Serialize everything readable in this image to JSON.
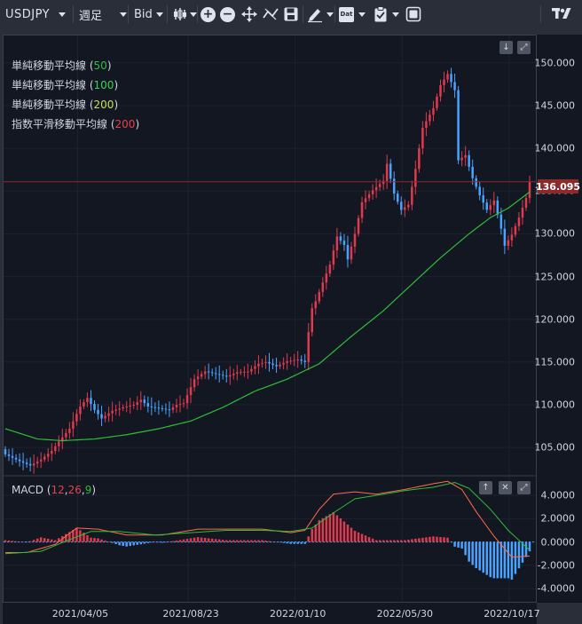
{
  "toolbar": {
    "symbol": "USDJPY",
    "interval": "週足",
    "price_type": "Bid",
    "icons": [
      "bar-style-icon",
      "zoom-in-icon",
      "zoom-out-icon",
      "crosshair-icon",
      "indicator-icon",
      "save-icon",
      "draw-pen-icon",
      "calendar-icon",
      "clipboard-icon",
      "layout-icon",
      "tradingview-logo-icon"
    ],
    "calendar_label": "Dat"
  },
  "legend": {
    "items": [
      {
        "name": "単純移動平均線",
        "param": "50",
        "color": "#2ebd3a"
      },
      {
        "name": "単純移動平均線",
        "param": "100",
        "color": "#39d353"
      },
      {
        "name": "単純移動平均線",
        "param": "200",
        "color": "#c8e05a"
      },
      {
        "name": "指数平滑移動平均線",
        "param": "200",
        "color": "#e04545"
      }
    ]
  },
  "macd": {
    "label": "MACD",
    "p1": "12",
    "p2": "26",
    "p3": "9",
    "p1_color": "#e04545",
    "p2_color": "#e04545",
    "p3_color": "#2ebd3a"
  },
  "last_price": "136.095",
  "colors": {
    "up": "#e03a4e",
    "down": "#4aa3ff",
    "ma": "#2ebd3a",
    "macd_line": "#ff6b4a",
    "signal_line": "#2ebd3a",
    "hist_pos": "#e03a4e",
    "hist_neg": "#4aa3ff"
  },
  "chart_data": {
    "type": "candlestick",
    "price_axis": {
      "ticks": [
        "150.000",
        "145.000",
        "140.000",
        "135.000",
        "130.000",
        "125.000",
        "120.000",
        "115.000",
        "110.000",
        "105.000"
      ],
      "range": [
        101.8,
        153.2
      ]
    },
    "macd_axis": {
      "ticks": [
        "4.0000",
        "2.0000",
        "0.0000",
        "-2.0000",
        "-4.0000"
      ],
      "range": [
        -5.2,
        5.6
      ]
    },
    "x_labels": [
      "2021/04/05",
      "2021/08/23",
      "2022/01/10",
      "2022/05/30",
      "2022/10/17"
    ],
    "close_anchors": [
      [
        0,
        104.2
      ],
      [
        4,
        103.4
      ],
      [
        7,
        102.9
      ],
      [
        10,
        103.6
      ],
      [
        13,
        104.6
      ],
      [
        15,
        105.7
      ],
      [
        18,
        107.2
      ],
      [
        21,
        109.8
      ],
      [
        23,
        110.8
      ],
      [
        25,
        109.4
      ],
      [
        27,
        108.4
      ],
      [
        30,
        109.3
      ],
      [
        33,
        109.7
      ],
      [
        36,
        110.0
      ],
      [
        38,
        110.6
      ],
      [
        40,
        109.8
      ],
      [
        43,
        109.6
      ],
      [
        46,
        109.4
      ],
      [
        48,
        110.0
      ],
      [
        50,
        110.2
      ],
      [
        53,
        113.0
      ],
      [
        56,
        113.9
      ],
      [
        59,
        113.6
      ],
      [
        62,
        113.3
      ],
      [
        65,
        113.8
      ],
      [
        68,
        113.9
      ],
      [
        71,
        114.8
      ],
      [
        73,
        115.0
      ],
      [
        76,
        114.5
      ],
      [
        79,
        115.1
      ],
      [
        82,
        115.3
      ],
      [
        84,
        115.0
      ],
      [
        85,
        118.5
      ],
      [
        86,
        121.3
      ],
      [
        87,
        122.1
      ],
      [
        89,
        124.3
      ],
      [
        91,
        126.4
      ],
      [
        93,
        129.7
      ],
      [
        95,
        128.7
      ],
      [
        96,
        127.0
      ],
      [
        98,
        130.0
      ],
      [
        100,
        133.7
      ],
      [
        103,
        135.1
      ],
      [
        106,
        136.2
      ],
      [
        107,
        138.2
      ],
      [
        109,
        134.7
      ],
      [
        111,
        132.8
      ],
      [
        113,
        133.4
      ],
      [
        115,
        137.6
      ],
      [
        117,
        142.4
      ],
      [
        120,
        144.7
      ],
      [
        122,
        147.4
      ],
      [
        124,
        148.7
      ],
      [
        126,
        146.8
      ],
      [
        127,
        138.6
      ],
      [
        129,
        139.2
      ],
      [
        131,
        136.5
      ],
      [
        133,
        134.5
      ],
      [
        135,
        132.8
      ],
      [
        137,
        133.9
      ],
      [
        139,
        130.6
      ],
      [
        140,
        128.6
      ],
      [
        142,
        129.9
      ],
      [
        144,
        131.9
      ],
      [
        146,
        134.2
      ],
      [
        147,
        136.1
      ]
    ],
    "ma_anchors": [
      [
        0,
        107.2
      ],
      [
        9,
        106.0
      ],
      [
        16,
        105.8
      ],
      [
        25,
        106.0
      ],
      [
        34,
        106.5
      ],
      [
        43,
        107.2
      ],
      [
        52,
        108.1
      ],
      [
        61,
        109.7
      ],
      [
        70,
        111.6
      ],
      [
        79,
        113.0
      ],
      [
        88,
        114.8
      ],
      [
        97,
        118.0
      ],
      [
        106,
        121.0
      ],
      [
        115,
        124.5
      ],
      [
        122,
        127.2
      ],
      [
        130,
        130.0
      ],
      [
        136,
        131.9
      ],
      [
        141,
        133.0
      ],
      [
        147,
        134.9
      ]
    ],
    "macd_anchors": [
      [
        0,
        -0.9
      ],
      [
        6,
        -0.9
      ],
      [
        14,
        -0.2
      ],
      [
        20,
        1.2
      ],
      [
        26,
        1.1
      ],
      [
        34,
        0.6
      ],
      [
        44,
        0.6
      ],
      [
        54,
        1.1
      ],
      [
        63,
        1.1
      ],
      [
        72,
        1.1
      ],
      [
        80,
        0.8
      ],
      [
        84,
        1.0
      ],
      [
        88,
        2.8
      ],
      [
        92,
        4.1
      ],
      [
        98,
        4.3
      ],
      [
        104,
        4.1
      ],
      [
        112,
        4.5
      ],
      [
        120,
        5.0
      ],
      [
        124,
        5.2
      ],
      [
        128,
        4.5
      ],
      [
        132,
        2.6
      ],
      [
        137,
        0.5
      ],
      [
        142,
        -1.3
      ],
      [
        147,
        -1.2
      ]
    ],
    "signal_anchors": [
      [
        0,
        -1.0
      ],
      [
        10,
        -0.8
      ],
      [
        18,
        0.2
      ],
      [
        24,
        0.9
      ],
      [
        32,
        0.9
      ],
      [
        42,
        0.6
      ],
      [
        52,
        0.8
      ],
      [
        62,
        1.0
      ],
      [
        72,
        1.0
      ],
      [
        80,
        0.9
      ],
      [
        86,
        1.2
      ],
      [
        92,
        2.5
      ],
      [
        98,
        3.7
      ],
      [
        104,
        4.0
      ],
      [
        112,
        4.4
      ],
      [
        120,
        4.7
      ],
      [
        126,
        5.1
      ],
      [
        130,
        4.6
      ],
      [
        136,
        2.8
      ],
      [
        141,
        1.0
      ],
      [
        147,
        -0.7
      ]
    ]
  }
}
